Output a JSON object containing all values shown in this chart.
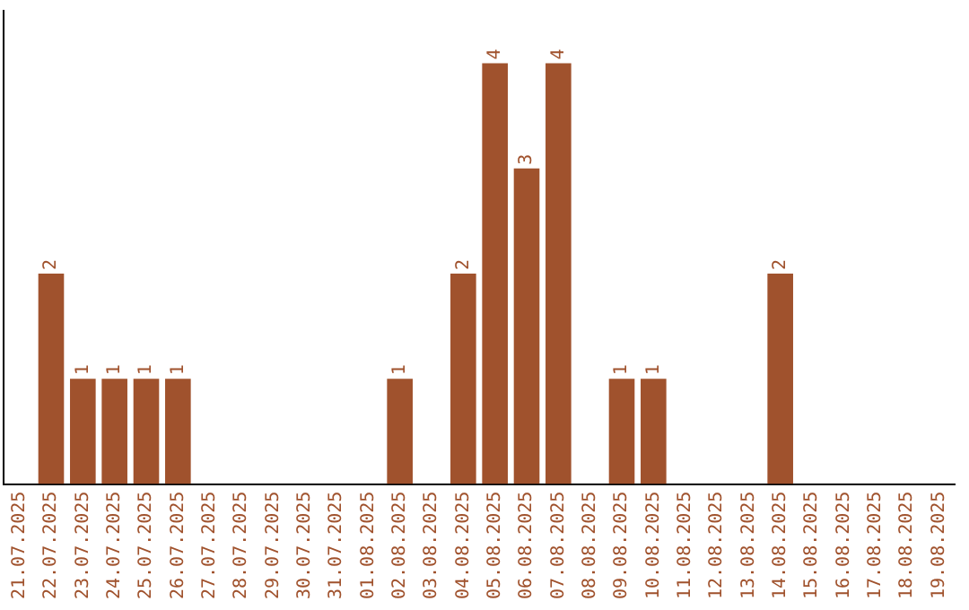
{
  "chart_data": {
    "type": "bar",
    "categories": [
      "21.07.2025",
      "22.07.2025",
      "23.07.2025",
      "24.07.2025",
      "25.07.2025",
      "26.07.2025",
      "27.07.2025",
      "28.07.2025",
      "29.07.2025",
      "30.07.2025",
      "31.07.2025",
      "01.08.2025",
      "02.08.2025",
      "03.08.2025",
      "04.08.2025",
      "05.08.2025",
      "06.08.2025",
      "07.08.2025",
      "08.08.2025",
      "09.08.2025",
      "10.08.2025",
      "11.08.2025",
      "12.08.2025",
      "13.08.2025",
      "14.08.2025",
      "15.08.2025",
      "16.08.2025",
      "17.08.2025",
      "18.08.2025",
      "19.08.2025"
    ],
    "values": [
      0,
      2,
      1,
      1,
      1,
      1,
      0,
      0,
      0,
      0,
      0,
      0,
      1,
      0,
      2,
      4,
      3,
      4,
      0,
      1,
      1,
      0,
      0,
      0,
      2,
      0,
      0,
      0,
      0,
      0
    ],
    "value_labels": [
      null,
      "2",
      "1",
      "1",
      "1",
      "1",
      null,
      null,
      null,
      null,
      null,
      null,
      "1",
      null,
      "2",
      "4",
      "3",
      "4",
      null,
      "1",
      "1",
      null,
      null,
      null,
      "2",
      null,
      null,
      null,
      null,
      null
    ],
    "color": "#a0522d",
    "grid": false,
    "legend": false,
    "tick_labels": "x"
  }
}
